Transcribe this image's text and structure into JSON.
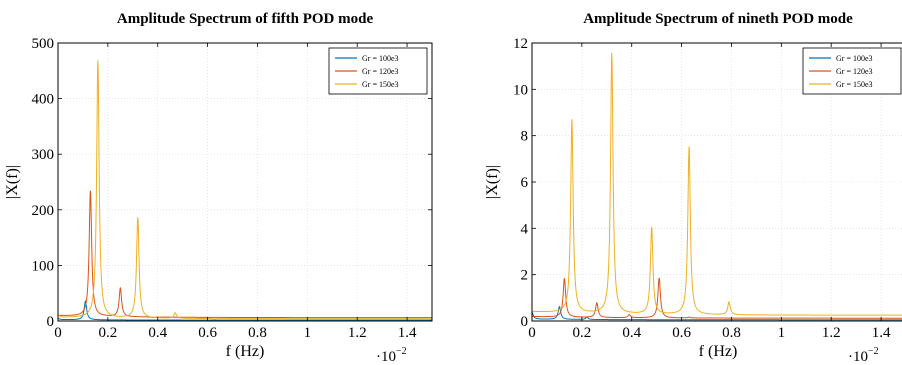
{
  "chart_data": [
    {
      "type": "line",
      "title": "Amplitude Spectrum of fifth POD mode",
      "xlabel": "f (Hz)",
      "ylabel": "|X(f)|",
      "x_scale_note": "·10",
      "x_scale_exp": "−2",
      "xlim": [
        0,
        1.5
      ],
      "ylim": [
        0,
        500
      ],
      "xticks": [
        "0",
        "0.2",
        "0.4",
        "0.6",
        "0.8",
        "1",
        "1.2",
        "1.4"
      ],
      "yticks": [
        "0",
        "100",
        "200",
        "300",
        "400",
        "500"
      ],
      "legend_position": "top-right",
      "colors": {
        "Gr = 100e3": "#0072BD",
        "Gr = 120e3": "#D95319",
        "Gr = 150e3": "#EDB120"
      },
      "series": [
        {
          "name": "Gr = 100e3",
          "background": 1.5,
          "peaks": [
            [
              0.11,
              35
            ],
            [
              0.0,
              4
            ]
          ]
        },
        {
          "name": "Gr = 120e3",
          "background": 6,
          "peaks": [
            [
              0.13,
              232
            ],
            [
              0.25,
              57
            ],
            [
              0.38,
              5
            ],
            [
              0.0,
              6
            ]
          ]
        },
        {
          "name": "Gr = 150e3",
          "background": 4,
          "peaks": [
            [
              0.16,
              467
            ],
            [
              0.32,
              185
            ],
            [
              0.47,
              14
            ],
            [
              0.63,
              3
            ],
            [
              0.0,
              8
            ]
          ]
        }
      ]
    },
    {
      "type": "line",
      "title": "Amplitude Spectrum of nineth POD mode",
      "xlabel": "f (Hz)",
      "ylabel": "|X(f)|",
      "x_scale_note": "·10",
      "x_scale_exp": "−2",
      "xlim": [
        0,
        1.5
      ],
      "ylim": [
        0,
        12
      ],
      "xticks": [
        "0",
        "0.2",
        "0.4",
        "0.6",
        "0.8",
        "1",
        "1.2",
        "1.4"
      ],
      "yticks": [
        "0",
        "2",
        "4",
        "6",
        "8",
        "10",
        "12"
      ],
      "legend_position": "top-right",
      "colors": {
        "Gr = 100e3": "#0072BD",
        "Gr = 120e3": "#D95319",
        "Gr = 150e3": "#EDB120"
      },
      "series": [
        {
          "name": "Gr = 100e3",
          "background": 0.05,
          "peaks": [
            [
              0.0,
              0.35
            ],
            [
              0.11,
              0.6
            ],
            [
              0.22,
              0.15
            ]
          ]
        },
        {
          "name": "Gr = 120e3",
          "background": 0.12,
          "peaks": [
            [
              0.13,
              1.8
            ],
            [
              0.26,
              0.75
            ],
            [
              0.39,
              0.25
            ],
            [
              0.51,
              1.85
            ],
            [
              0.63,
              0.15
            ]
          ]
        },
        {
          "name": "Gr = 150e3",
          "background": 0.25,
          "peaks": [
            [
              0.16,
              8.6
            ],
            [
              0.32,
              11.5
            ],
            [
              0.48,
              4.0
            ],
            [
              0.63,
              7.5
            ],
            [
              0.79,
              0.8
            ]
          ]
        }
      ]
    }
  ],
  "legend": {
    "entries": [
      "Gr = 100e3",
      "Gr = 120e3",
      "Gr = 150e3"
    ]
  }
}
